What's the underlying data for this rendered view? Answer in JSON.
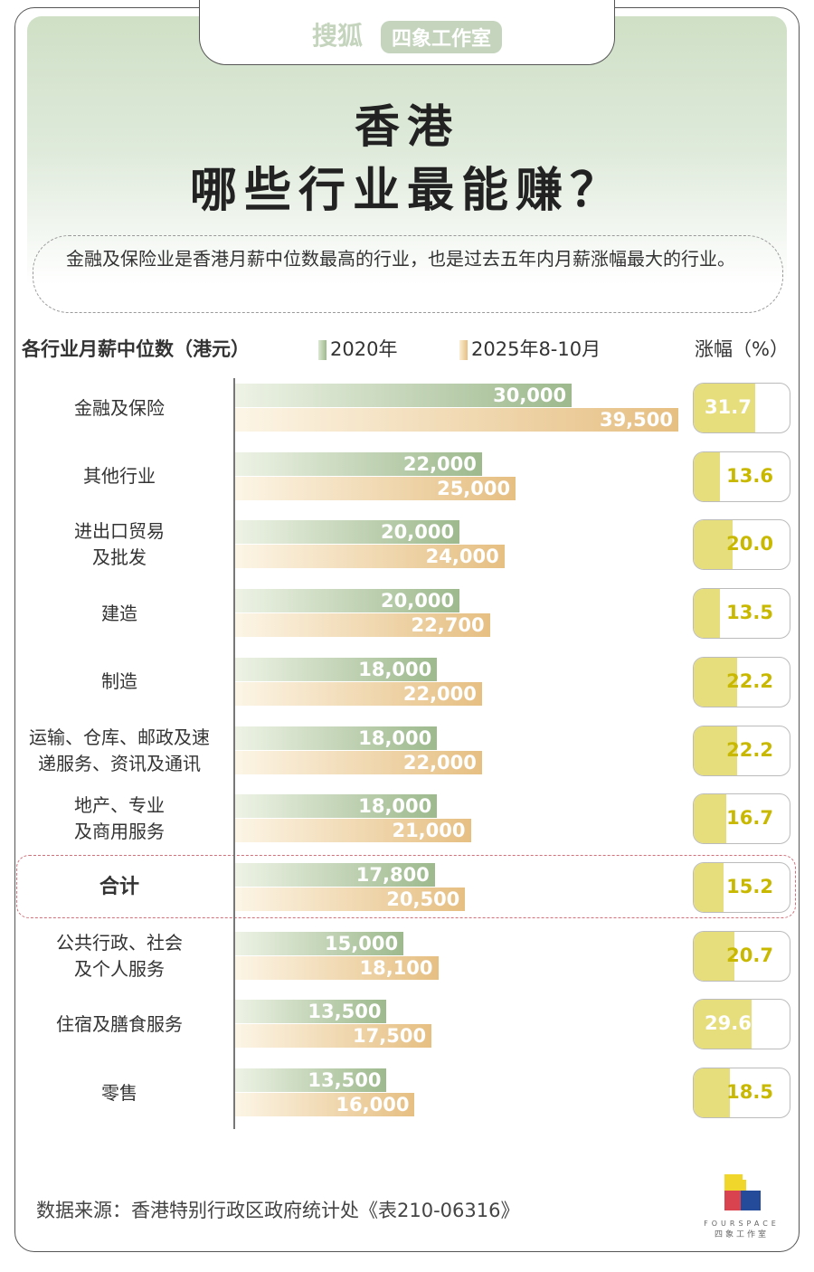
{
  "header": {
    "brand": "搜狐",
    "brand_tag": "四象工作室",
    "title_line1": "香港",
    "title_line2": "哪些行业最能赚？",
    "description": "金融及保险业是香港月薪中位数最高的行业，也是过去五年内月薪涨幅最大的行业。"
  },
  "chart_data": {
    "type": "bar",
    "orientation": "horizontal",
    "title": "各行业月薪中位数（港元）",
    "growth_label": "涨幅（%）",
    "categories": [
      "金融及保险",
      "其他行业",
      "进出口贸易\n及批发",
      "建造",
      "制造",
      "运输、仓库、邮政及速\n递服务、资讯及通讯",
      "地产、专业\n及商用服务",
      "合计",
      "公共行政、社会\n及个人服务",
      "住宿及膳食服务",
      "零售"
    ],
    "series": [
      {
        "name": "2020年",
        "color": "#9db98d",
        "values": [
          30000,
          22000,
          20000,
          20000,
          18000,
          18000,
          18000,
          17800,
          15000,
          13500,
          13500
        ]
      },
      {
        "name": "2025年8-10月",
        "color": "#e6bf82",
        "values": [
          39500,
          25000,
          24000,
          22700,
          22000,
          22000,
          21000,
          20500,
          18100,
          17500,
          16000
        ]
      }
    ],
    "growth_pct": [
      31.7,
      13.6,
      20.0,
      13.5,
      22.2,
      22.2,
      16.7,
      15.2,
      20.7,
      29.6,
      18.5
    ],
    "highlight": "合计",
    "growth_color": "#e6dd7c",
    "growth_text_color": "#c9b800"
  },
  "footer": {
    "source": "数据来源：香港特别行政区政府统计处《表210-06316》",
    "logo_en": "FOURSPACE",
    "logo_cn": "四象工作室"
  }
}
